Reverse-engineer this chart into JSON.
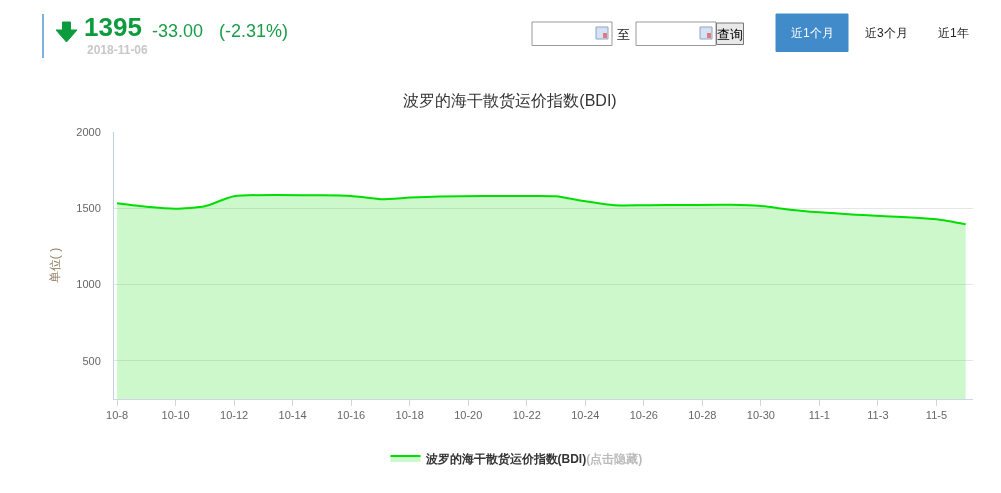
{
  "chart_data": {
    "type": "area",
    "title": "波罗的海干散货运价指数(BDI)",
    "ylabel": "单位( )",
    "x": [
      "2018-10-08",
      "2018-10-09",
      "2018-10-10",
      "2018-10-11",
      "2018-10-12",
      "2018-10-15",
      "2018-10-16",
      "2018-10-17",
      "2018-10-18",
      "2018-10-19",
      "2018-10-22",
      "2018-10-23",
      "2018-10-24",
      "2018-10-25",
      "2018-10-26",
      "2018-10-29",
      "2018-10-30",
      "2018-10-31",
      "2018-11-01",
      "2018-11-02",
      "2018-11-05",
      "2018-11-06"
    ],
    "series": [
      {
        "name": "波罗的海干散货运价指数(BDI)",
        "color": "#00dd00",
        "values": [
          1533,
          1510,
          1497,
          1513,
          1579,
          1585,
          1581,
          1560,
          1570,
          1577,
          1581,
          1579,
          1546,
          1520,
          1520,
          1523,
          1515,
          1491,
          1474,
          1461,
          1428,
          1395
        ]
      }
    ],
    "xlim": [
      "2018-10-07T21:30",
      "2018-11-06T06:00"
    ],
    "xticks": [
      {
        "value": "2018-10-08",
        "label": "10-8"
      },
      {
        "value": "2018-10-10",
        "label": "10-10"
      },
      {
        "value": "2018-10-12",
        "label": "10-12"
      },
      {
        "value": "2018-10-14",
        "label": "10-14"
      },
      {
        "value": "2018-10-16",
        "label": "10-16"
      },
      {
        "value": "2018-10-18",
        "label": "10-18"
      },
      {
        "value": "2018-10-20",
        "label": "10-20"
      },
      {
        "value": "2018-10-22",
        "label": "10-22"
      },
      {
        "value": "2018-10-24",
        "label": "10-24"
      },
      {
        "value": "2018-10-26",
        "label": "10-26"
      },
      {
        "value": "2018-10-28",
        "label": "10-28"
      },
      {
        "value": "2018-10-30",
        "label": "10-30"
      },
      {
        "value": "2018-11-01",
        "label": "11-1"
      },
      {
        "value": "2018-11-03",
        "label": "11-3"
      },
      {
        "value": "2018-11-05",
        "label": "11-5"
      }
    ],
    "ylim": [
      250,
      2000
    ],
    "yticks": [
      500,
      1000,
      1500,
      2000
    ],
    "grid": "y",
    "legend": "bottom",
    "annotations": [
      "1395",
      "-33.00",
      "(-2.31%)",
      "2018-11-06",
      "至",
      "查询",
      "近1个月",
      "近3个月",
      "近1年",
      "(点击隐藏)"
    ]
  }
}
